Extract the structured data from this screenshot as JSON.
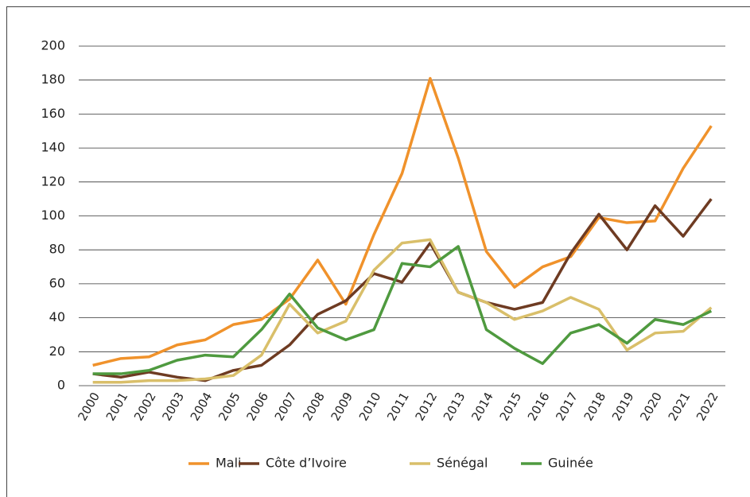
{
  "chart_data": {
    "type": "line",
    "categories": [
      "2000",
      "2001",
      "2002",
      "2003",
      "2004",
      "2005",
      "2006",
      "2007",
      "2008",
      "2009",
      "2010",
      "2011",
      "2012",
      "2013",
      "2014",
      "2015",
      "2016",
      "2017",
      "2018",
      "2019",
      "2020",
      "2021",
      "2022"
    ],
    "series": [
      {
        "name": "Mali",
        "color": "#f0922b",
        "values": [
          12,
          16,
          17,
          24,
          27,
          36,
          39,
          51,
          74,
          48,
          89,
          125,
          181,
          134,
          79,
          58,
          70,
          76,
          99,
          96,
          97,
          128,
          153
        ]
      },
      {
        "name": "Côte d’Ivoire",
        "color": "#6e3b22",
        "values": [
          7,
          5,
          8,
          5,
          3,
          9,
          12,
          24,
          42,
          50,
          66,
          61,
          84,
          55,
          49,
          45,
          49,
          78,
          101,
          80,
          106,
          88,
          110
        ]
      },
      {
        "name": "Sénégal",
        "color": "#d9bf6a",
        "values": [
          2,
          2,
          3,
          3,
          4,
          6,
          18,
          48,
          31,
          38,
          68,
          84,
          86,
          55,
          49,
          39,
          44,
          52,
          45,
          21,
          31,
          32,
          46
        ]
      },
      {
        "name": "Guinée",
        "color": "#4f9a3f",
        "values": [
          7,
          7,
          9,
          15,
          18,
          17,
          33,
          54,
          34,
          27,
          33,
          72,
          70,
          82,
          33,
          22,
          13,
          31,
          36,
          25,
          39,
          36,
          44
        ]
      }
    ],
    "ylim": [
      0,
      200
    ],
    "yticks": [
      0,
      20,
      40,
      60,
      80,
      100,
      120,
      140,
      160,
      180,
      200
    ],
    "grid": true,
    "legend": "bottom"
  }
}
